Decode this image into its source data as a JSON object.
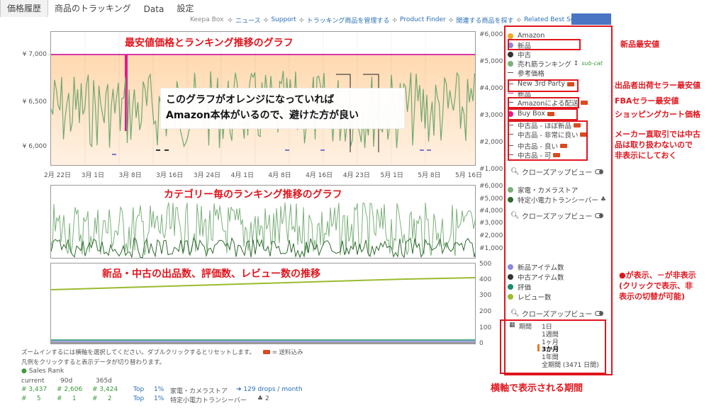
{
  "tabs": [
    "価格履歴",
    "商品のトラッキング",
    "Data",
    "設定"
  ],
  "nav": {
    "box": "Keepa Box",
    "links": [
      "ニュース",
      "Support",
      "トラッキング商品を管理する",
      "Product Finder",
      "関連する商品を探す",
      "Related Best Sellers"
    ]
  },
  "chart1": {
    "title": "最安値価格とランキング推移のグラフ",
    "callout_line1": "このグラフがオレンジになっていれば",
    "callout_line2": "Amazon本体がいるので、避けた方が良い",
    "y_left": [
      "¥ 7,000",
      "¥ 6,500",
      "¥ 6,000"
    ],
    "y_right": [
      "#6,000",
      "#5,000",
      "#4,000",
      "#3,000",
      "#2,000",
      "#1,000"
    ],
    "x_ticks": [
      "2月 22日",
      "3月 1日",
      "3月 8日",
      "3月 16日",
      "3月 24日",
      "4月 1日",
      "4月 8日",
      "4月 16日",
      "4月 23日",
      "5月 1日",
      "5月 8日",
      "5月 16日"
    ]
  },
  "chart2": {
    "title": "カテゴリー毎のランキング推移のグラフ",
    "y_right": [
      "#6,000",
      "#5,000",
      "#4,000",
      "#3,000",
      "#2,000",
      "#1,000"
    ]
  },
  "chart3": {
    "title": "新品・中古の出品数、評価数、レビュー数の推移",
    "y_right": [
      "500",
      "400",
      "300",
      "200",
      "100",
      "0"
    ]
  },
  "legend": {
    "group1": [
      {
        "label": "Amazon",
        "marker": "dot",
        "color": "#f5a623"
      },
      {
        "label": "新品",
        "marker": "dot",
        "color": "#8888dd"
      },
      {
        "label": "中古",
        "marker": "dot",
        "color": "#333333"
      },
      {
        "label": "売れ筋ランキング",
        "marker": "dot",
        "color": "#7bb07b"
      },
      {
        "label": "参考価格",
        "marker": "dash",
        "color": "#555555"
      },
      {
        "label": "New 3rd Party",
        "marker": "dash",
        "color": "#555555"
      },
      {
        "label": "新品",
        "marker": "dash",
        "color": "#cc3399"
      },
      {
        "label": "Amazonによる配送",
        "marker": "dash",
        "color": "#555555"
      },
      {
        "label": "Buy Box",
        "marker": "dot",
        "color": "#e6198c"
      },
      {
        "label": "中古品 - ほぼ新品",
        "marker": "dash",
        "color": "#555555"
      },
      {
        "label": "中古品 - 非常に良い",
        "marker": "dash",
        "color": "#555555"
      },
      {
        "label": "中古品 - 良い",
        "marker": "dash",
        "color": "#555555"
      },
      {
        "label": "中古品 - 可",
        "marker": "dash",
        "color": "#555555"
      }
    ],
    "subcat": "sub-cat",
    "closeup": "クローズアップビュー",
    "group2": [
      {
        "label": "家電・カメラストア",
        "color": "#7bb07b"
      },
      {
        "label": "特定小電力トランシーバー",
        "color": "#2f6b2f"
      }
    ],
    "group3": [
      {
        "label": "新品アイテム数",
        "color": "#8888dd"
      },
      {
        "label": "中古アイテム数",
        "color": "#333333"
      },
      {
        "label": "評価",
        "color": "#1a8a6a"
      },
      {
        "label": "レビュー数",
        "color": "#9bbb2e"
      }
    ]
  },
  "range": {
    "label": "期間",
    "items": [
      "1日",
      "1週間",
      "1ヶ月",
      "3か月",
      "1年間",
      "全期間 (3471 日間)"
    ],
    "selected": "3か月"
  },
  "notes": {
    "new_lowest": "新品最安値",
    "third_party": "出品者出荷セラー最安値",
    "fba": "FBAセラー最安値",
    "buybox": "ショッピングカート価格",
    "used": [
      "メーカー直取引では中古",
      "品は取り扱わないので",
      "非表示にしておく"
    ],
    "toggle": [
      "●が表示、－が非表示",
      "(クリックで表示、非",
      "表示の切替が可能)"
    ],
    "period": "横軸で表示される期間"
  },
  "info": {
    "zoom": "ズームインするには横軸を選択してください。ダブルクリックするとリセットします。",
    "shipping": "= 送料込み",
    "legend_hint": "凡例をクリックすると表示データが切り替わります。"
  },
  "stats": {
    "header": "Sales Rank",
    "cols": [
      "current",
      "90d",
      "365d"
    ],
    "rows": [
      {
        "current": "3,437",
        "d90": "2,606",
        "d365": "3,424",
        "top": "Top",
        "pct": "1%",
        "category": "家電・カメラストア",
        "extra": "129 drops / month"
      },
      {
        "current": "5",
        "d90": "1",
        "d365": "2",
        "top": "Top",
        "pct": "1%",
        "category": "特定小電力トランシーバー",
        "extra": "2"
      }
    ]
  }
}
